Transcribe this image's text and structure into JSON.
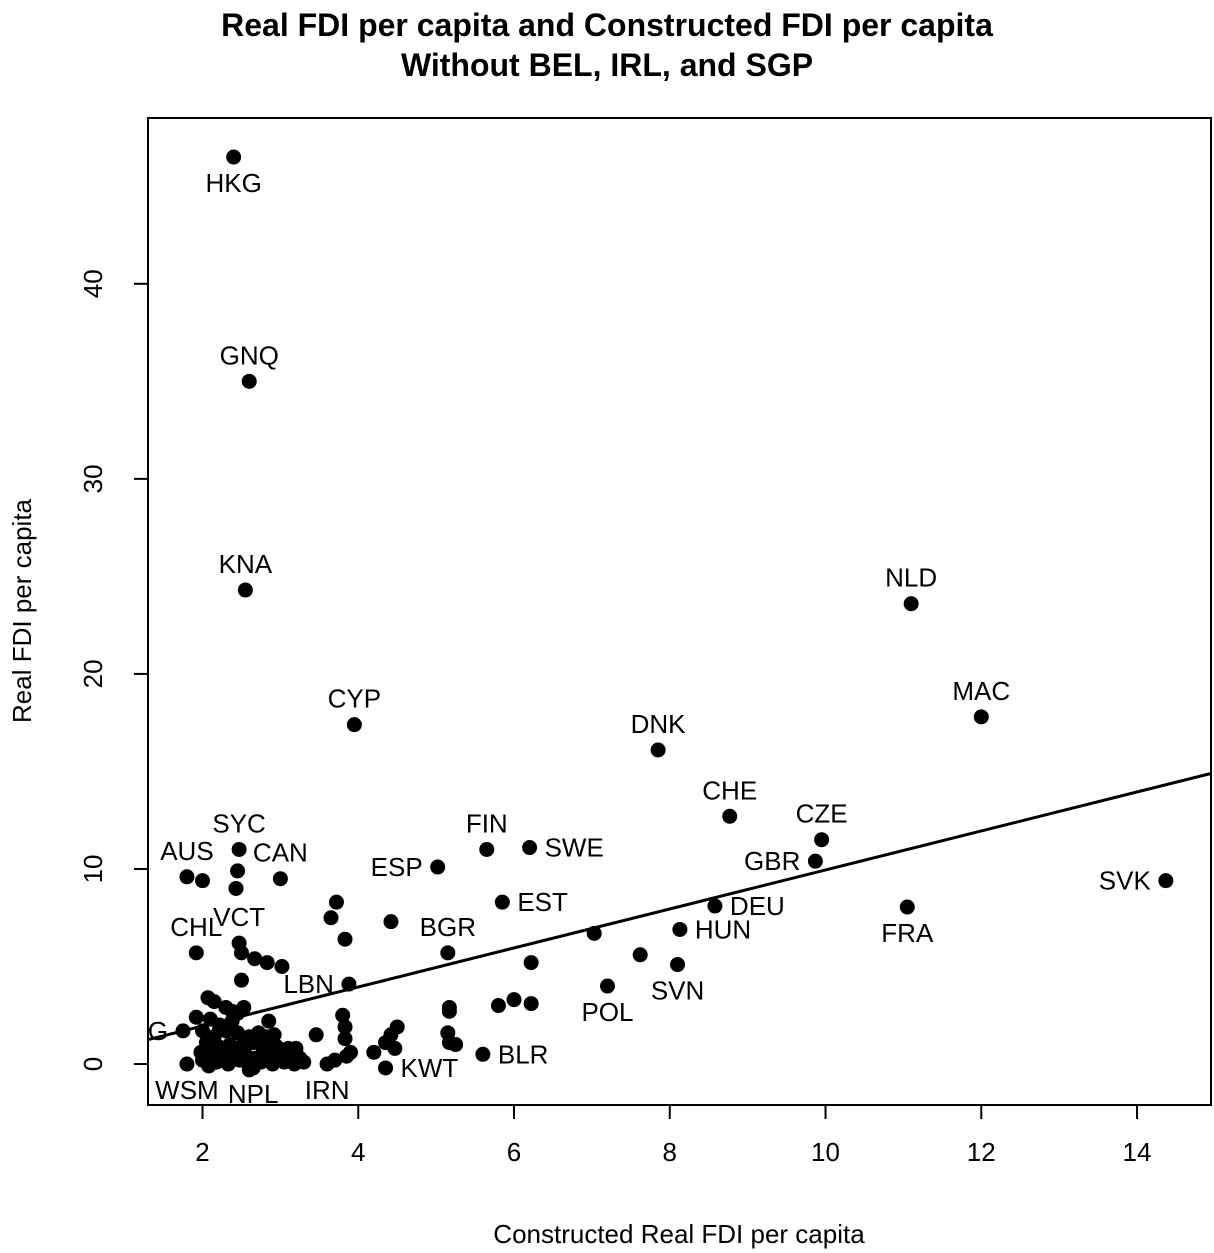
{
  "chart_data": {
    "type": "scatter",
    "title": "Real FDI per capita and Constructed FDI per capita",
    "subtitle": "Without BEL, IRL, and SGP",
    "xlabel": "Constructed Real FDI per capita",
    "ylabel": "Real FDI per capita",
    "xlim": [
      1.3,
      14.95
    ],
    "ylim": [
      -2.1,
      48.5
    ],
    "xticks": [
      2,
      4,
      6,
      8,
      10,
      12,
      14
    ],
    "yticks": [
      0,
      10,
      20,
      30,
      40
    ],
    "grid": false,
    "fit_line": {
      "x": [
        1.3,
        14.95
      ],
      "y": [
        1.25,
        14.9
      ]
    },
    "labeled_points": [
      {
        "label": "HKG",
        "x": 2.4,
        "y": 46.5,
        "pos": "below"
      },
      {
        "label": "GNQ",
        "x": 2.6,
        "y": 35.0,
        "pos": "above"
      },
      {
        "label": "KNA",
        "x": 2.55,
        "y": 24.3,
        "pos": "above"
      },
      {
        "label": "NLD",
        "x": 11.1,
        "y": 23.6,
        "pos": "above"
      },
      {
        "label": "MAC",
        "x": 12.0,
        "y": 17.8,
        "pos": "above"
      },
      {
        "label": "CYP",
        "x": 3.95,
        "y": 17.4,
        "pos": "above"
      },
      {
        "label": "DNK",
        "x": 7.85,
        "y": 16.1,
        "pos": "above"
      },
      {
        "label": "CHE",
        "x": 8.77,
        "y": 12.7,
        "pos": "above"
      },
      {
        "label": "CZE",
        "x": 9.95,
        "y": 11.5,
        "pos": "above"
      },
      {
        "label": "SYC",
        "x": 2.47,
        "y": 11.0,
        "pos": "above"
      },
      {
        "label": "FIN",
        "x": 5.65,
        "y": 11.0,
        "pos": "above"
      },
      {
        "label": "SWE",
        "x": 6.2,
        "y": 11.1,
        "pos": "right"
      },
      {
        "label": "GBR",
        "x": 9.87,
        "y": 10.4,
        "pos": "left"
      },
      {
        "label": "ESP",
        "x": 5.02,
        "y": 10.1,
        "pos": "left"
      },
      {
        "label": "AUS",
        "x": 1.8,
        "y": 9.6,
        "pos": "above"
      },
      {
        "label": "CAN",
        "x": 3.0,
        "y": 9.5,
        "pos": "above"
      },
      {
        "label": "SVK",
        "x": 14.37,
        "y": 9.4,
        "pos": "left"
      },
      {
        "label": "EST",
        "x": 5.85,
        "y": 8.3,
        "pos": "right"
      },
      {
        "label": "DEU",
        "x": 8.58,
        "y": 8.1,
        "pos": "right"
      },
      {
        "label": "FRA",
        "x": 11.05,
        "y": 8.05,
        "pos": "below"
      },
      {
        "label": "VCT",
        "x": 2.47,
        "y": 6.2,
        "pos": "above"
      },
      {
        "label": "CHL",
        "x": 1.92,
        "y": 5.7,
        "pos": "above"
      },
      {
        "label": "BGR",
        "x": 5.15,
        "y": 5.7,
        "pos": "above"
      },
      {
        "label": "HUN",
        "x": 8.13,
        "y": 6.9,
        "pos": "right"
      },
      {
        "label": "SVN",
        "x": 8.1,
        "y": 5.1,
        "pos": "below"
      },
      {
        "label": "LBN",
        "x": 3.88,
        "y": 4.1,
        "pos": "left"
      },
      {
        "label": "POL",
        "x": 7.2,
        "y": 4.0,
        "pos": "below"
      },
      {
        "label": "ARG",
        "x": 1.75,
        "y": 1.7,
        "pos": "left"
      },
      {
        "label": "BLR",
        "x": 5.6,
        "y": 0.5,
        "pos": "right"
      },
      {
        "label": "KWT",
        "x": 4.35,
        "y": -0.2,
        "pos": "right"
      },
      {
        "label": "WSM",
        "x": 1.8,
        "y": 0.0,
        "pos": "below"
      },
      {
        "label": "NPL",
        "x": 2.65,
        "y": -0.2,
        "pos": "below"
      },
      {
        "label": "IRN",
        "x": 3.6,
        "y": 0.0,
        "pos": "below"
      }
    ],
    "other_points": [
      {
        "x": 2.0,
        "y": 9.4
      },
      {
        "x": 2.45,
        "y": 9.9
      },
      {
        "x": 2.43,
        "y": 9.0
      },
      {
        "x": 3.72,
        "y": 8.3
      },
      {
        "x": 3.65,
        "y": 7.5
      },
      {
        "x": 4.42,
        "y": 7.3
      },
      {
        "x": 3.83,
        "y": 6.4
      },
      {
        "x": 7.03,
        "y": 6.7
      },
      {
        "x": 7.62,
        "y": 5.6
      },
      {
        "x": 6.22,
        "y": 5.2
      },
      {
        "x": 2.5,
        "y": 5.7
      },
      {
        "x": 2.67,
        "y": 5.4
      },
      {
        "x": 2.83,
        "y": 5.2
      },
      {
        "x": 3.02,
        "y": 5.0
      },
      {
        "x": 2.5,
        "y": 4.3
      },
      {
        "x": 5.8,
        "y": 3.0
      },
      {
        "x": 6.0,
        "y": 3.3
      },
      {
        "x": 6.22,
        "y": 3.1
      },
      {
        "x": 5.17,
        "y": 2.9
      },
      {
        "x": 5.17,
        "y": 2.7
      },
      {
        "x": 5.15,
        "y": 1.6
      },
      {
        "x": 5.17,
        "y": 1.1
      },
      {
        "x": 5.25,
        "y": 1.0
      },
      {
        "x": 3.46,
        "y": 1.5
      },
      {
        "x": 3.8,
        "y": 2.5
      },
      {
        "x": 3.83,
        "y": 1.9
      },
      {
        "x": 3.83,
        "y": 1.3
      },
      {
        "x": 3.9,
        "y": 0.6
      },
      {
        "x": 3.85,
        "y": 0.4
      },
      {
        "x": 3.7,
        "y": 0.2
      },
      {
        "x": 4.2,
        "y": 0.6
      },
      {
        "x": 4.35,
        "y": 1.1
      },
      {
        "x": 4.42,
        "y": 1.5
      },
      {
        "x": 4.5,
        "y": 1.9
      },
      {
        "x": 4.47,
        "y": 0.8
      },
      {
        "x": 2.07,
        "y": 3.4
      },
      {
        "x": 2.15,
        "y": 3.2
      },
      {
        "x": 2.3,
        "y": 2.9
      },
      {
        "x": 2.38,
        "y": 2.7
      },
      {
        "x": 2.53,
        "y": 2.9
      },
      {
        "x": 1.92,
        "y": 2.4
      },
      {
        "x": 2.1,
        "y": 2.3
      },
      {
        "x": 2.22,
        "y": 2.0
      },
      {
        "x": 2.45,
        "y": 2.6
      },
      {
        "x": 2.85,
        "y": 2.2
      },
      {
        "x": 2.0,
        "y": 1.7
      },
      {
        "x": 2.15,
        "y": 1.4
      },
      {
        "x": 2.3,
        "y": 1.7
      },
      {
        "x": 2.45,
        "y": 1.6
      },
      {
        "x": 2.6,
        "y": 1.4
      },
      {
        "x": 2.72,
        "y": 1.6
      },
      {
        "x": 2.82,
        "y": 1.4
      },
      {
        "x": 2.92,
        "y": 1.5
      },
      {
        "x": 2.05,
        "y": 1.1
      },
      {
        "x": 2.2,
        "y": 0.9
      },
      {
        "x": 2.35,
        "y": 1.0
      },
      {
        "x": 2.5,
        "y": 0.9
      },
      {
        "x": 2.65,
        "y": 1.1
      },
      {
        "x": 2.78,
        "y": 0.8
      },
      {
        "x": 2.95,
        "y": 0.9
      },
      {
        "x": 3.1,
        "y": 0.8
      },
      {
        "x": 3.2,
        "y": 0.8
      },
      {
        "x": 1.98,
        "y": 0.6
      },
      {
        "x": 2.12,
        "y": 0.5
      },
      {
        "x": 2.28,
        "y": 0.4
      },
      {
        "x": 2.4,
        "y": 0.6
      },
      {
        "x": 2.55,
        "y": 0.5
      },
      {
        "x": 2.68,
        "y": 0.3
      },
      {
        "x": 2.83,
        "y": 0.4
      },
      {
        "x": 2.97,
        "y": 0.3
      },
      {
        "x": 3.12,
        "y": 0.4
      },
      {
        "x": 3.25,
        "y": 0.3
      },
      {
        "x": 2.0,
        "y": 0.2
      },
      {
        "x": 2.18,
        "y": 0.1
      },
      {
        "x": 2.33,
        "y": 0.0
      },
      {
        "x": 2.48,
        "y": 0.2
      },
      {
        "x": 2.62,
        "y": 0.0
      },
      {
        "x": 2.75,
        "y": 0.1
      },
      {
        "x": 2.9,
        "y": 0.0
      },
      {
        "x": 3.05,
        "y": 0.1
      },
      {
        "x": 3.18,
        "y": 0.0
      },
      {
        "x": 3.3,
        "y": 0.1
      },
      {
        "x": 2.08,
        "y": -0.1
      },
      {
        "x": 2.6,
        "y": -0.3
      },
      {
        "x": 2.22,
        "y": 1.8
      },
      {
        "x": 2.38,
        "y": 2.2
      }
    ]
  }
}
